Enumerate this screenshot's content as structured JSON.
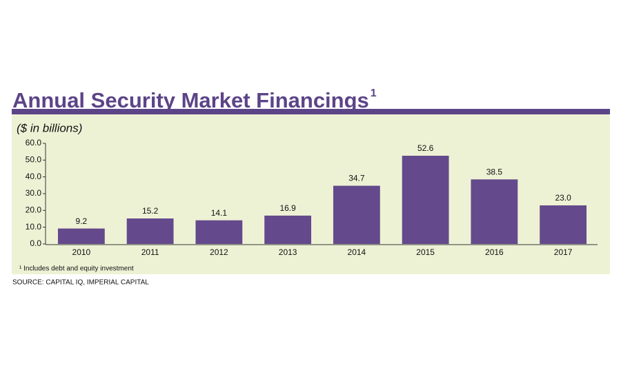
{
  "chart_data": {
    "type": "bar",
    "title": "Annual Security Market Financings",
    "title_superscript": "1",
    "subtitle": "($ in billions)",
    "footnote": "¹ Includes debt and equity investment",
    "source": "SOURCE: CAPITAL IQ, IMPERIAL CAPITAL",
    "categories": [
      "2010",
      "2011",
      "2012",
      "2013",
      "2014",
      "2015",
      "2016",
      "2017"
    ],
    "values": [
      9.2,
      15.2,
      14.1,
      16.9,
      34.7,
      52.6,
      38.5,
      23.0
    ],
    "value_labels": [
      "9.2",
      "15.2",
      "14.1",
      "16.9",
      "34.7",
      "52.6",
      "38.5",
      "23.0"
    ],
    "color": "#644a8c",
    "ylim": [
      0,
      60
    ],
    "yticks": [
      {
        "value": 0,
        "label": "0.0"
      },
      {
        "value": 10,
        "label": "10.0"
      },
      {
        "value": 20,
        "label": "20.0"
      },
      {
        "value": 30,
        "label": "30.0"
      },
      {
        "value": 40,
        "label": "40.0"
      },
      {
        "value": 50,
        "label": "50.0"
      },
      {
        "value": 60,
        "label": "60.0"
      }
    ],
    "grid": false
  }
}
